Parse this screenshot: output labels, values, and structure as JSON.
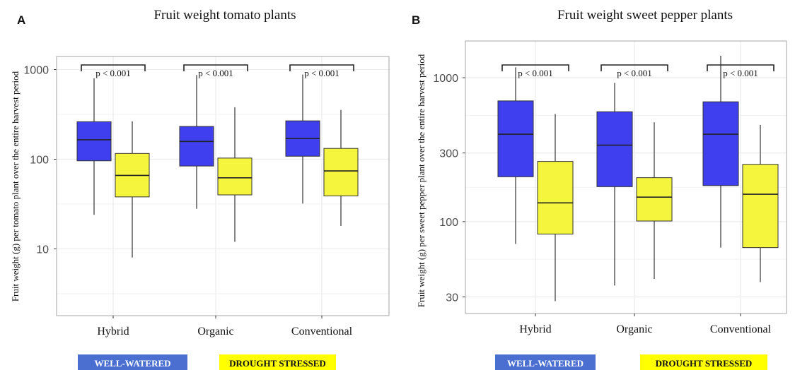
{
  "colors": {
    "well_watered": "#3f3ff0",
    "drought_stressed": "#f4f53c",
    "legend_well_watered": "#4a6fd1",
    "legend_drought": "#ffff00",
    "panel_border": "#b3b3b3",
    "grid": "#ebebeb"
  },
  "chart_data": [
    {
      "type": "box",
      "panel_letter": "A",
      "title": "Fruit weight tomato plants",
      "ylabel": "Fruit weight (g) per tomato plant over the entire harvest period",
      "xlabel": "",
      "y_scale": "log10",
      "ylim": [
        1.8,
        1400
      ],
      "y_ticks": [
        10,
        100,
        1000
      ],
      "y_tick_labels": [
        "10",
        "100",
        "1000"
      ],
      "grid": true,
      "categories": [
        "Hybrid",
        "Organic",
        "Conventional"
      ],
      "series": [
        {
          "group": "well_watered",
          "boxes": [
            {
              "min": 24,
              "q1": 96,
              "median": 165,
              "q3": 262,
              "max": 800
            },
            {
              "min": 28,
              "q1": 84,
              "median": 158,
              "q3": 232,
              "max": 870
            },
            {
              "min": 32,
              "q1": 108,
              "median": 170,
              "q3": 268,
              "max": 880
            }
          ]
        },
        {
          "group": "drought_stressed",
          "boxes": [
            {
              "min": 8,
              "q1": 38,
              "median": 66,
              "q3": 116,
              "max": 265
            },
            {
              "min": 12,
              "q1": 40,
              "median": 62,
              "q3": 103,
              "max": 380
            },
            {
              "min": 18,
              "q1": 39,
              "median": 74,
              "q3": 132,
              "max": 355
            }
          ]
        }
      ],
      "annotations": [
        "p < 0.001",
        "p < 0.001",
        "p < 0.001"
      ]
    },
    {
      "type": "box",
      "panel_letter": "B",
      "title": "Fruit weight sweet pepper plants",
      "ylabel": "Fruit weight (g) per sweet pepper plant over the entire harvest period",
      "xlabel": "",
      "y_scale": "log10",
      "ylim": [
        23,
        1800
      ],
      "y_ticks": [
        30,
        100,
        300,
        1000
      ],
      "y_tick_labels": [
        "30",
        "100",
        "300",
        "1000"
      ],
      "grid": true,
      "categories": [
        "Hybrid",
        "Organic",
        "Conventional"
      ],
      "series": [
        {
          "group": "well_watered",
          "boxes": [
            {
              "min": 70,
              "q1": 205,
              "median": 405,
              "q3": 690,
              "max": 1180
            },
            {
              "min": 36,
              "q1": 175,
              "median": 340,
              "q3": 580,
              "max": 920
            },
            {
              "min": 66,
              "q1": 178,
              "median": 405,
              "q3": 680,
              "max": 1420
            }
          ]
        },
        {
          "group": "drought_stressed",
          "boxes": [
            {
              "min": 28,
              "q1": 82,
              "median": 135,
              "q3": 262,
              "max": 560
            },
            {
              "min": 40,
              "q1": 101,
              "median": 148,
              "q3": 202,
              "max": 490
            },
            {
              "min": 38,
              "q1": 66,
              "median": 155,
              "q3": 250,
              "max": 470
            }
          ]
        }
      ],
      "annotations": [
        "p < 0.001",
        "p < 0.001",
        "p < 0.001"
      ]
    }
  ],
  "legend": {
    "well_watered_label": "WELL-WATERED",
    "drought_stressed_label": "DROUGHT STRESSED"
  }
}
